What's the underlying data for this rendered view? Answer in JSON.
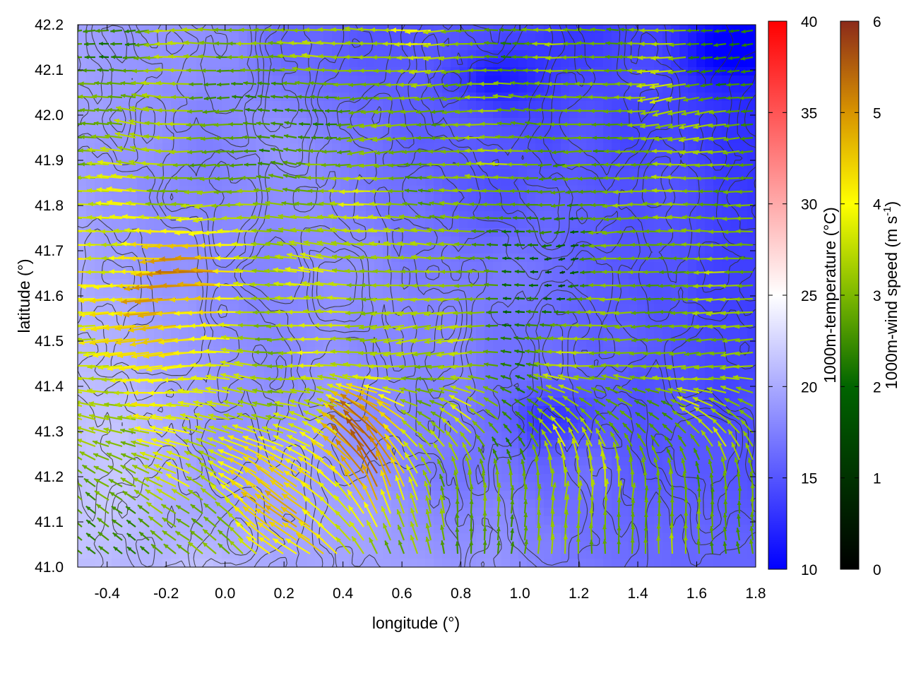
{
  "chart_data": {
    "type": "heatmap",
    "title": "",
    "xlabel": "longitude (°)",
    "ylabel": "latitude (°)",
    "xlim": [
      -0.5,
      1.8
    ],
    "ylim": [
      41.0,
      42.2
    ],
    "x_ticks": [
      "-0.4",
      "-0.2",
      "0.0",
      "0.2",
      "0.4",
      "0.6",
      "0.8",
      "1.0",
      "1.2",
      "1.4",
      "1.6",
      "1.8"
    ],
    "y_ticks": [
      "41.0",
      "41.1",
      "41.2",
      "41.3",
      "41.4",
      "41.5",
      "41.6",
      "41.7",
      "41.8",
      "41.9",
      "42.0",
      "42.1",
      "42.2"
    ],
    "layers": [
      {
        "kind": "heatmap",
        "variable": "1000m-temperature",
        "unit": "°C"
      },
      {
        "kind": "contour",
        "variable": "terrain",
        "color": "#333333"
      },
      {
        "kind": "vector",
        "variable": "1000m-wind",
        "unit": "m s-1"
      }
    ],
    "colorbars": [
      {
        "label": "1000m-temperature (°C)",
        "range": [
          10,
          40
        ],
        "ticks": [
          "10",
          "15",
          "20",
          "25",
          "30",
          "35",
          "40"
        ],
        "colors": [
          "#0000ff",
          "#ffffff",
          "#ff0000"
        ]
      },
      {
        "label_main": "1000m-wind speed (m s",
        "label_sup": "-1",
        "label_end": ")",
        "range": [
          0,
          6
        ],
        "ticks": [
          "0",
          "1",
          "2",
          "3",
          "4",
          "5",
          "6"
        ],
        "colors": [
          "#000000",
          "#006400",
          "#7cb800",
          "#ffff00",
          "#d89400",
          "#8b2a1a"
        ]
      }
    ],
    "temperature_field_summary": {
      "min": 12,
      "max": 22,
      "warmest_region": "southwest",
      "coolest_region": "northeast"
    },
    "wind_field_summary": {
      "prevailing_direction_west": "from east (westward flow)",
      "prevailing_direction_southeast": "from south (northward flow)",
      "max_speed": 6,
      "strongest_region": "south-center"
    }
  }
}
